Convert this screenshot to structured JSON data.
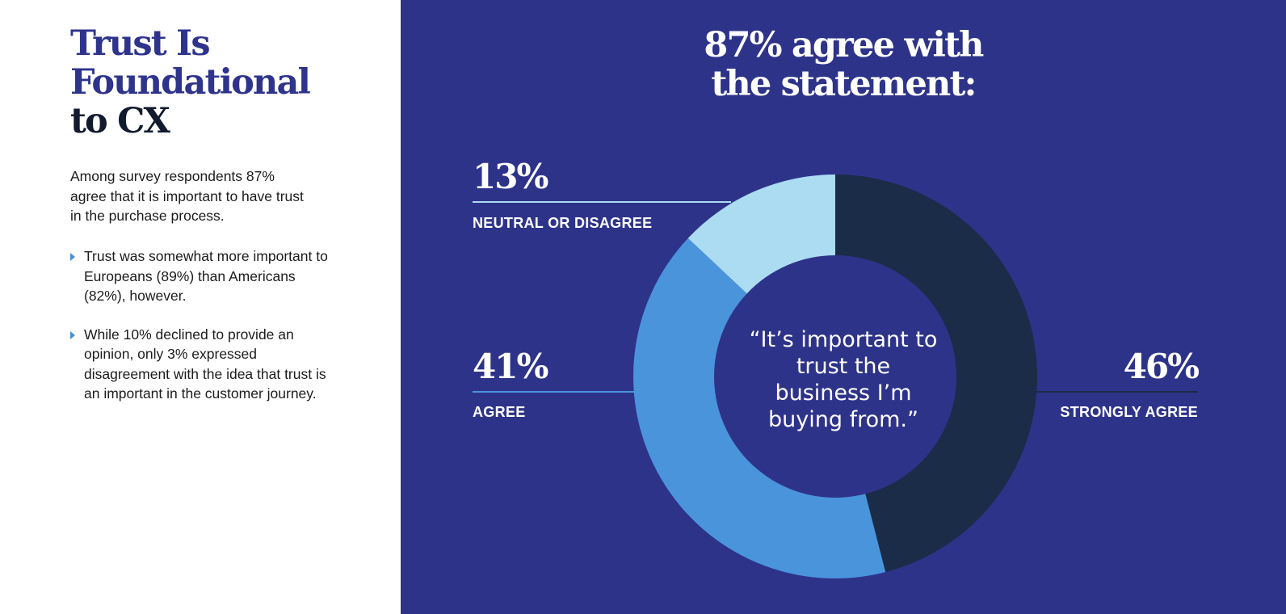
{
  "left": {
    "title_lines": [
      "Trust Is",
      "Foundational",
      "to CX"
    ],
    "intro": "Among survey respondents 87% agree that it is important to have trust in the purchase process.",
    "bullets": [
      "Trust was somewhat more important to Europeans (89%) than Americans (82%), however.",
      "While 10% declined to provide an opinion, only 3% expressed disagreement with the idea that trust is an important in the customer journey."
    ]
  },
  "colors": {
    "panel_bg": "#2e338a",
    "title_blue": "#2e338c",
    "title_dark": "#111a2e",
    "strongly_agree": "#1a2c48",
    "agree": "#4a94dc",
    "neutral": "#acdcf2"
  },
  "chart_data": {
    "type": "pie",
    "donut": true,
    "title_lines": [
      "87% agree with",
      "the statement:"
    ],
    "center_text": "“It’s important to trust the business I’m buying from.”",
    "slices": [
      {
        "label": "STRONGLY AGREE",
        "value": 46,
        "display": "46%",
        "color": "#1a2c48"
      },
      {
        "label": "AGREE",
        "value": 41,
        "display": "41%",
        "color": "#4a94dc"
      },
      {
        "label": "NEUTRAL OR DISAGREE",
        "value": 13,
        "display": "13%",
        "color": "#acdcf2"
      }
    ]
  }
}
